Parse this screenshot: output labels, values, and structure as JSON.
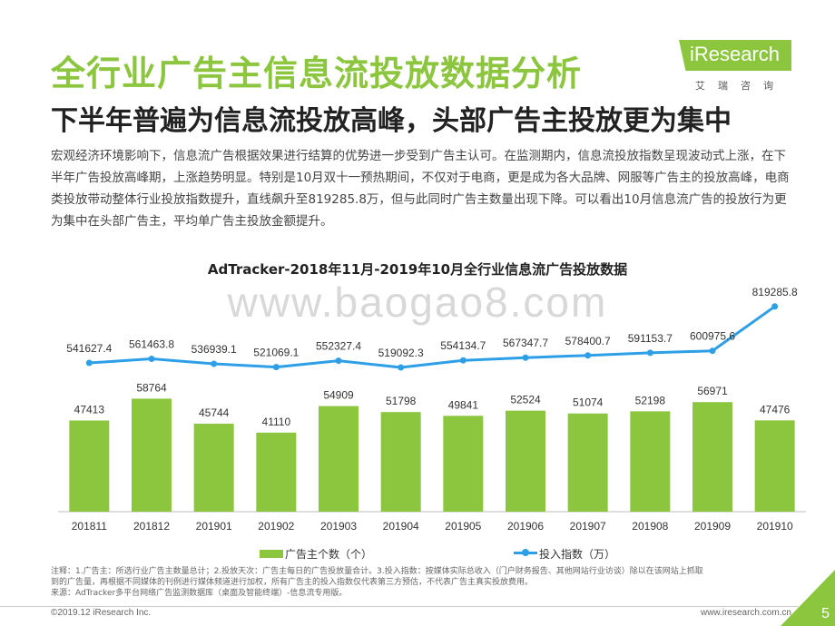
{
  "header": {
    "title": "全行业广告主信息流投放数据分析",
    "subtitle": "下半年普遍为信息流投放高峰，头部广告主投放更为集中"
  },
  "logo": {
    "brand": "iResearch",
    "tagline": "艾瑞咨询"
  },
  "description": "宏观经济环境影响下，信息流广告根据效果进行结算的优势进一步受到广告主认可。在监测期内，信息流投放指数呈现波动式上涨，在下半年广告投放高峰期，上涨趋势明显。特别是10月双十一预热期间，不仅对于电商，更是成为各大品牌、网服等广告主的投放高峰，电商类投放带动整体行业投放指数提升，直线飙升至819285.8万，但与此同时广告主数量出现下降。可以看出10月信息流广告的投放行为更为集中在头部广告主，平均单广告主投放金额提升。",
  "watermark": "www.baogao8.com",
  "chart_data": {
    "type": "bar",
    "title": "AdTracker-2018年11月-2019年10月全行业信息流广告投放数据",
    "categories": [
      "201811",
      "201812",
      "201901",
      "201902",
      "201903",
      "201904",
      "201905",
      "201906",
      "201907",
      "201908",
      "201909",
      "201910"
    ],
    "series": [
      {
        "name": "广告主个数（个）",
        "type": "bar",
        "color": "#8cc63f",
        "values": [
          47413,
          58764,
          45744,
          41110,
          54909,
          51798,
          49841,
          52524,
          51074,
          52198,
          56971,
          47476
        ]
      },
      {
        "name": "投入指数（万）",
        "type": "line",
        "color": "#2e9fe6",
        "values": [
          541627.4,
          561463.8,
          536939.1,
          521069.1,
          552327.4,
          519092.3,
          554134.7,
          567347.7,
          578400.7,
          591153.7,
          600975.6,
          819285.8
        ]
      }
    ],
    "grid": false,
    "legend": "bottom"
  },
  "notes": {
    "line1": "注释：1.广告主：所选行业广告主数量总计；2.投放天次：广告主每日的广告投放量合计。3.投入指数：按媒体实际总收入（门户财务报告、其他网站行业访谈）除以在该网站上抓取",
    "line2": "到的广告量，再根据不同媒体的刊例进行媒体频道进行加权，所有广告主的投入指数仅代表第三方预估，不代表广告主真实投放费用。",
    "line3": "来源：AdTracker多平台网络广告监测数据库（桌面及智能终端）-信息流专用版。"
  },
  "footer": {
    "copyright": "©2019.12 iResearch Inc.",
    "website": "www.iresearch.com.cn",
    "page": "5"
  }
}
